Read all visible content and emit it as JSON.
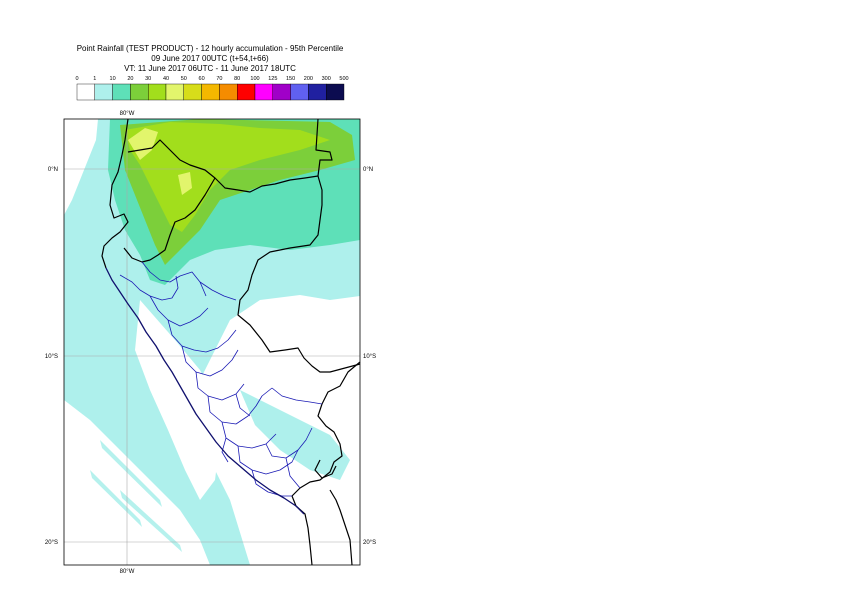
{
  "title": {
    "line1": "Point Rainfall (TEST PRODUCT) - 12 hourly accumulation - 95th Percentile",
    "line2": "09 June 2017 00UTC (t+54,t+66)",
    "line3": "VT: 11 June 2017 06UTC - 11 June 2017 18UTC"
  },
  "legend": {
    "thresholds": [
      "0",
      "1",
      "10",
      "20",
      "30",
      "40",
      "50",
      "60",
      "70",
      "80",
      "100",
      "125",
      "150",
      "200",
      "300",
      "500"
    ],
    "colors": [
      "#ffffff",
      "#aef0ec",
      "#5ee0b8",
      "#7ccf3a",
      "#a2de1c",
      "#e2f56c",
      "#d7dd1a",
      "#f4b800",
      "#f58c00",
      "#ff0000",
      "#ff00ff",
      "#a000c8",
      "#6060f0",
      "#2020a0",
      "#0c0c50"
    ]
  },
  "map": {
    "lat_labels": [
      "0°N",
      "10°S",
      "20°S"
    ],
    "lon_labels": [
      "80°W"
    ]
  }
}
